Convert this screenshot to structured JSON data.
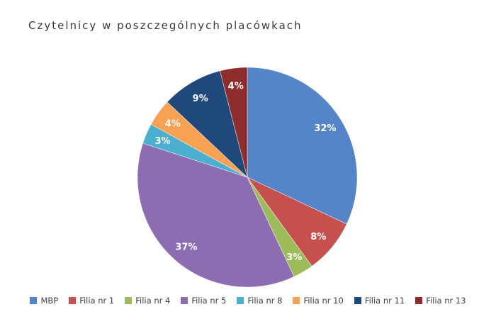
{
  "title": "Czytelnicy w poszczególnych placówkach",
  "colors": {
    "background": "#FFFFFF",
    "title_text": "#3A3A3A",
    "legend_text": "#3F3F3F",
    "slice_label_text": "#FFFFFF"
  },
  "chart_data": {
    "type": "pie",
    "title": "Czytelnicy w poszczególnych placówkach",
    "start_angle_deg": 0,
    "direction": "clockwise",
    "legend_position": "bottom",
    "data_labels": "percent-inside",
    "slices": [
      {
        "name": "MBP",
        "value": 32,
        "label": "32%",
        "color": "#5385C8"
      },
      {
        "name": "Filia nr 1",
        "value": 8,
        "label": "8%",
        "color": "#C6504E"
      },
      {
        "name": "Filia nr 4",
        "value": 3,
        "label": "3%",
        "color": "#9CBB59"
      },
      {
        "name": "Filia nr 5",
        "value": 37,
        "label": "37%",
        "color": "#8D6DB1"
      },
      {
        "name": "Filia nr 8",
        "value": 3,
        "label": "3%",
        "color": "#4BAFCF"
      },
      {
        "name": "Filia nr 10",
        "value": 4,
        "label": "4%",
        "color": "#F9A153"
      },
      {
        "name": "Filia nr 11",
        "value": 9,
        "label": "9%",
        "color": "#20497B"
      },
      {
        "name": "Filia nr 13",
        "value": 4,
        "label": "4%",
        "color": "#8E2D2B"
      }
    ]
  }
}
